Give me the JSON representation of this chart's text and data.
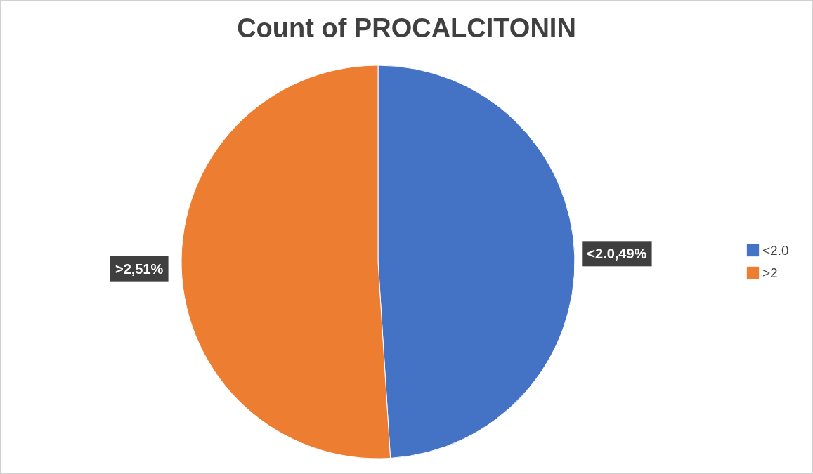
{
  "chart_data": {
    "type": "pie",
    "title": "Count of PROCALCITONIN",
    "categories": [
      "<2.0",
      ">2"
    ],
    "values": [
      49,
      51
    ],
    "colors": [
      "#4472c4",
      "#ed7d31"
    ],
    "value_labels": [
      "<2.0,49%",
      ">2,51%"
    ],
    "legend": "right"
  }
}
